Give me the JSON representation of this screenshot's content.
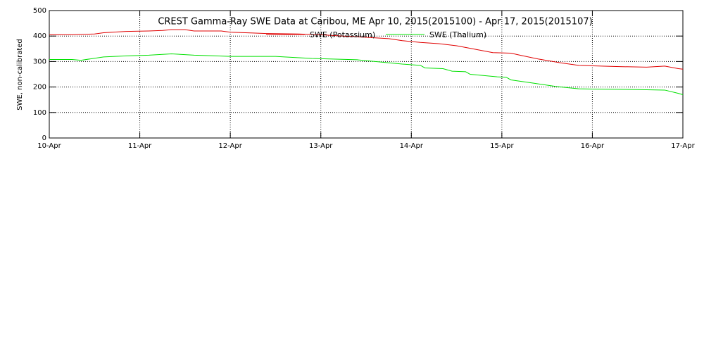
{
  "chart_data": {
    "type": "line",
    "title": "CREST Gamma-Ray SWE Data at Caribou, ME   Apr 10, 2015(2015100) - Apr 17, 2015(2015107)",
    "y_label": "SWE, non-calibrated",
    "xlim": [
      10,
      17
    ],
    "xticks": [
      {
        "value": 10,
        "label": "10-Apr"
      },
      {
        "value": 11,
        "label": "11-Apr"
      },
      {
        "value": 12,
        "label": "12-Apr"
      },
      {
        "value": 13,
        "label": "13-Apr"
      },
      {
        "value": 14,
        "label": "14-Apr"
      },
      {
        "value": 15,
        "label": "15-Apr"
      },
      {
        "value": 16,
        "label": "16-Apr"
      },
      {
        "value": 17,
        "label": "17-Apr"
      }
    ],
    "ylim": [
      0,
      500
    ],
    "yticks": [
      0,
      100,
      200,
      300,
      400,
      500
    ],
    "grid": true,
    "series": [
      {
        "name": "SWE (Potassium)",
        "color": "#e00000",
        "x": [
          10.0,
          10.25,
          10.5,
          10.6,
          10.85,
          11.1,
          11.25,
          11.35,
          11.5,
          11.6,
          11.9,
          12.0,
          12.25,
          12.4,
          12.75,
          13.0,
          13.25,
          13.5,
          13.75,
          13.9,
          14.1,
          14.3,
          14.5,
          14.65,
          14.9,
          15.1,
          15.2,
          15.4,
          15.65,
          15.85,
          16.0,
          16.3,
          16.6,
          16.8,
          16.95,
          17.0
        ],
        "values": [
          405,
          405,
          408,
          413,
          418,
          420,
          422,
          425,
          425,
          420,
          420,
          415,
          412,
          410,
          408,
          405,
          400,
          395,
          390,
          382,
          375,
          370,
          362,
          352,
          335,
          333,
          325,
          310,
          295,
          285,
          283,
          280,
          278,
          282,
          272,
          270
        ]
      },
      {
        "name": "SWE (Thalium)",
        "color": "#00e000",
        "x": [
          10.0,
          10.25,
          10.35,
          10.6,
          10.85,
          11.1,
          11.35,
          11.6,
          11.85,
          12.0,
          12.5,
          12.6,
          12.9,
          13.1,
          13.4,
          13.6,
          13.9,
          14.1,
          14.15,
          14.35,
          14.45,
          14.6,
          14.65,
          14.95,
          15.05,
          15.1,
          15.35,
          15.6,
          15.85,
          16.0,
          16.5,
          16.8,
          16.95,
          17.0
        ],
        "values": [
          308,
          308,
          305,
          318,
          322,
          325,
          330,
          325,
          322,
          320,
          320,
          318,
          312,
          310,
          307,
          300,
          290,
          285,
          275,
          272,
          262,
          260,
          250,
          240,
          238,
          228,
          215,
          202,
          193,
          192,
          190,
          188,
          175,
          170
        ]
      }
    ]
  }
}
